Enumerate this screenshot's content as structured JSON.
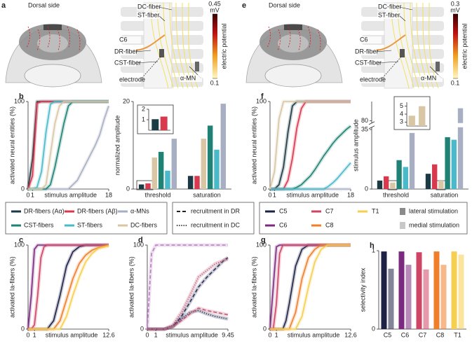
{
  "illustrations": [
    {
      "panel": "a",
      "title": "Dorsal side",
      "labels": [
        "DC-fiber",
        "ST-fiber",
        "C6",
        "DR-fiber",
        "CST-fiber",
        "electrode",
        "α-MN"
      ],
      "colorbar": {
        "max": 0.45,
        "min": 0.1,
        "unit": "mV",
        "label": "electric potential"
      }
    },
    {
      "panel": "e",
      "title": "Dorsal side",
      "labels": [
        "DC-fiber",
        "ST-fiber",
        "C6",
        "DR-fiber",
        "CST-fiber",
        "electrode",
        "α-MN"
      ],
      "colorbar": {
        "max": 0.3,
        "min": 0.1,
        "unit": "mV",
        "label": "electric potential"
      }
    }
  ],
  "legend": {
    "recruitment": [
      "recruitment in DR",
      "recruitment in DC"
    ],
    "stimulation": [
      "lateral stimulation",
      "medial stimulation"
    ]
  },
  "chart_data": [
    {
      "type": "line",
      "panel": "b",
      "ylabel": "activated neural entities (%)",
      "xlabel": "stimulus amplitude",
      "xlim": [
        0,
        18
      ],
      "xticks": [
        0,
        1,
        18
      ],
      "ylim": [
        0,
        100
      ],
      "yticks": [
        0,
        100
      ],
      "x": [
        0,
        1,
        2,
        3,
        4,
        5,
        6,
        7,
        8,
        9,
        10,
        11,
        12,
        13,
        14,
        15,
        16,
        17,
        18
      ],
      "series": [
        {
          "name": "DR-fibers (Aα)",
          "color": "#1b3a44",
          "values": [
            0,
            35,
            100,
            100,
            100,
            100,
            100,
            100,
            100,
            100,
            100,
            100,
            100,
            100,
            100,
            100,
            100,
            100,
            100
          ]
        },
        {
          "name": "DR-fibers (Aβ)",
          "color": "#d8394e",
          "values": [
            0,
            15,
            98,
            100,
            100,
            100,
            100,
            100,
            100,
            100,
            100,
            100,
            100,
            100,
            100,
            100,
            100,
            100,
            100
          ]
        },
        {
          "name": "α-MNs",
          "color": "#a8afc2",
          "values": [
            0,
            0,
            0,
            0,
            0,
            0,
            0,
            0,
            0,
            0,
            5,
            10,
            20,
            30,
            40,
            50,
            62,
            80,
            95
          ]
        },
        {
          "name": "CST-fibers",
          "color": "#1f8275",
          "values": [
            0,
            0,
            0,
            0,
            0,
            5,
            25,
            50,
            75,
            95,
            100,
            100,
            100,
            100,
            100,
            100,
            100,
            100,
            100
          ]
        },
        {
          "name": "ST-fibers",
          "color": "#4ab9c9",
          "values": [
            0,
            0,
            2,
            20,
            65,
            97,
            100,
            100,
            100,
            100,
            100,
            100,
            100,
            100,
            100,
            100,
            100,
            100,
            100
          ]
        },
        {
          "name": "DC-fibers",
          "color": "#d8c6a5",
          "values": [
            0,
            0,
            0,
            0,
            5,
            40,
            75,
            95,
            100,
            100,
            100,
            100,
            100,
            100,
            100,
            100,
            100,
            100,
            100
          ]
        }
      ]
    },
    {
      "type": "bar",
      "ylabel": "normalized amplitude",
      "categories": [
        "threshold",
        "saturation"
      ],
      "ylim": [
        0,
        20
      ],
      "yticks": [
        0,
        20
      ],
      "series": [
        {
          "color": "#1b3a44",
          "values": [
            1.05,
            3
          ]
        },
        {
          "color": "#d8394e",
          "values": [
            1.3,
            3
          ]
        },
        {
          "color": "#d8c6a5",
          "values": [
            7.2,
            11.5
          ]
        },
        {
          "color": "#1f8275",
          "values": [
            8.5,
            14.5
          ]
        },
        {
          "color": "#4ab9c9",
          "values": [
            4.2,
            9
          ]
        },
        {
          "color": "#a8afc2",
          "values": [
            11.5,
            19.5
          ]
        }
      ]
    },
    {
      "type": "bar",
      "categories": [
        null
      ],
      "ylim": [
        0,
        2
      ],
      "yticks": [
        1,
        2
      ],
      "series": [
        {
          "color": "#1b3a44",
          "values": [
            1.05
          ]
        },
        {
          "color": "#d8394e",
          "values": [
            1.3
          ]
        }
      ]
    },
    {
      "type": "line",
      "panel": "f",
      "ylabel": "activated neural entities (%)",
      "xlabel": "stimulus amplitude",
      "xlim": [
        0,
        18
      ],
      "xticks": [
        0,
        1,
        18
      ],
      "ylim": [
        0,
        100
      ],
      "yticks": [
        0,
        100
      ],
      "x": [
        0,
        1,
        2,
        3,
        4,
        5,
        6,
        7,
        8,
        9,
        10,
        11,
        12,
        13,
        14,
        15,
        16,
        17,
        18
      ],
      "series": [
        {
          "color": "#1b3a44",
          "values": [
            0,
            0,
            5,
            25,
            65,
            95,
            100,
            100,
            100,
            100,
            100,
            100,
            100,
            100,
            100,
            100,
            100,
            100,
            100
          ]
        },
        {
          "color": "#d8394e",
          "values": [
            0,
            0,
            0,
            0,
            10,
            35,
            70,
            92,
            100,
            100,
            100,
            100,
            100,
            100,
            100,
            100,
            100,
            100,
            100
          ]
        },
        {
          "color": "#a8afc2",
          "values": [
            0,
            0,
            0,
            0,
            0,
            0,
            0,
            0,
            0,
            0,
            0,
            0,
            0,
            0,
            0,
            0,
            0,
            0,
            0
          ]
        },
        {
          "color": "#1f8275",
          "values": [
            0,
            0,
            0,
            0,
            0,
            0,
            2,
            5,
            10,
            15,
            22,
            30,
            38,
            45,
            52,
            58,
            63,
            68,
            72
          ]
        },
        {
          "color": "#4ab9c9",
          "values": [
            0,
            0,
            0,
            0,
            0,
            0,
            0,
            0,
            0,
            0,
            0,
            0,
            0,
            3,
            7,
            12,
            18,
            24,
            30
          ]
        },
        {
          "color": "#d8c6a5",
          "values": [
            0,
            20,
            80,
            100,
            100,
            100,
            100,
            100,
            100,
            100,
            100,
            100,
            100,
            100,
            100,
            100,
            100,
            100,
            100
          ]
        }
      ]
    },
    {
      "type": "bar",
      "ylabel": "stimulus amplitude",
      "categories": [
        "threshold",
        "saturation"
      ],
      "ylim": [
        0,
        100
      ],
      "ybreak": [
        35,
        80
      ],
      "yticks": [
        0,
        35,
        80
      ],
      "series": [
        {
          "color": "#1b3a44",
          "values": [
            5,
            9
          ]
        },
        {
          "color": "#d8394e",
          "values": [
            7.5,
            14.5
          ]
        },
        {
          "color": "#d8c6a5",
          "values": [
            3.8,
            5
          ]
        },
        {
          "color": "#1f8275",
          "values": [
            17,
            30.5
          ]
        },
        {
          "color": "#4ab9c9",
          "values": [
            13,
            29
          ]
        },
        {
          "color": "#a8afc2",
          "values": [
            33,
            93
          ]
        }
      ]
    },
    {
      "type": "bar",
      "categories": [
        null,
        null
      ],
      "ylim": [
        2.5,
        5.5
      ],
      "yticks": [
        3,
        4,
        5
      ],
      "series": [
        {
          "color": "#d8c6a5",
          "values": [
            3.8,
            5
          ]
        }
      ]
    },
    {
      "type": "line",
      "panel": "c",
      "ylabel": "activated Ia-fibers (%)",
      "xlabel": "stimulus amplitude",
      "xlim": [
        0,
        12.6
      ],
      "xticks": [
        0,
        1,
        12.6
      ],
      "ylim": [
        0,
        100
      ],
      "yticks": [
        0,
        100
      ],
      "x": [
        0,
        0.5,
        1,
        1.5,
        2,
        2.5,
        3,
        4,
        5,
        6,
        7,
        8,
        9,
        10,
        11,
        12.6
      ],
      "series": [
        {
          "name": "C5",
          "color": "#1e2346",
          "values": [
            0,
            0,
            0,
            0,
            0,
            0,
            0,
            10,
            40,
            75,
            92,
            98,
            100,
            100,
            100,
            100
          ]
        },
        {
          "name": "C6",
          "color": "#7c2a80",
          "values": [
            0,
            40,
            95,
            100,
            100,
            100,
            100,
            100,
            100,
            100,
            100,
            100,
            100,
            100,
            100,
            100
          ]
        },
        {
          "name": "C7",
          "color": "#cf4566",
          "values": [
            0,
            0,
            5,
            40,
            85,
            98,
            100,
            100,
            100,
            100,
            100,
            100,
            100,
            100,
            100,
            100
          ]
        },
        {
          "name": "C8",
          "color": "#f07f2b",
          "values": [
            0,
            0,
            0,
            0,
            0,
            0,
            0,
            0,
            10,
            35,
            60,
            78,
            88,
            94,
            97,
            100
          ]
        },
        {
          "name": "T1",
          "color": "#f7cf4f",
          "values": [
            0,
            0,
            0,
            0,
            0,
            0,
            0,
            0,
            0,
            15,
            40,
            62,
            80,
            90,
            96,
            99
          ]
        }
      ]
    },
    {
      "type": "line",
      "panel": "d",
      "ylabel": "activated Ia-fibers (%)",
      "xlabel": "stimulus amplitude",
      "xlim": [
        0,
        9.45
      ],
      "xticks": [
        0,
        1,
        9.45
      ],
      "ylim": [
        0,
        100
      ],
      "yticks": [
        0,
        100
      ],
      "x": [
        0,
        0.5,
        1,
        2,
        3,
        4,
        5,
        6,
        7,
        8,
        9,
        9.45
      ],
      "series": [
        {
          "color": "#b77fbf",
          "dash": "dashed",
          "values": [
            0,
            90,
            100,
            100,
            100,
            100,
            100,
            100,
            100,
            100,
            100,
            100
          ]
        },
        {
          "color": "#2b2d55",
          "dash": "dashed",
          "values": [
            0,
            0,
            0,
            0,
            3,
            15,
            32,
            50,
            62,
            72,
            82,
            85
          ]
        },
        {
          "color": "#c05a78",
          "dash": "dotted",
          "values": [
            0,
            0,
            0,
            0,
            5,
            20,
            40,
            62,
            70,
            78,
            82,
            83
          ]
        },
        {
          "color": "#2b2d55",
          "dash": "dotted",
          "values": [
            0,
            0,
            0,
            0,
            3,
            12,
            20,
            22,
            18,
            15,
            13,
            12
          ]
        },
        {
          "color": "#c05a78",
          "dash": "dashed",
          "values": [
            0,
            0,
            0,
            0,
            3,
            10,
            18,
            25,
            22,
            20,
            18,
            17
          ]
        }
      ]
    },
    {
      "type": "line",
      "panel": "g",
      "ylabel": "activated Ia-fibers (%)",
      "xlabel": "stimulus amplitude",
      "xlim": [
        0,
        12.6
      ],
      "xticks": [
        0,
        1,
        12.6
      ],
      "ylim": [
        0,
        100
      ],
      "yticks": [
        0,
        100
      ],
      "x": [
        0,
        0.5,
        1,
        1.5,
        2,
        2.5,
        3,
        4,
        5,
        6,
        7,
        8,
        9,
        10,
        11,
        12.6
      ],
      "series": [
        {
          "color": "#1e2346",
          "values": [
            0,
            0,
            0,
            0,
            0,
            10,
            30,
            75,
            95,
            100,
            100,
            100,
            100,
            100,
            100,
            100
          ]
        },
        {
          "color": "#7c2a80",
          "values": [
            0,
            50,
            98,
            100,
            100,
            100,
            100,
            100,
            100,
            100,
            100,
            100,
            100,
            100,
            100,
            100
          ]
        },
        {
          "color": "#cf4566",
          "values": [
            0,
            0,
            30,
            90,
            100,
            100,
            100,
            100,
            100,
            100,
            100,
            100,
            100,
            100,
            100,
            100
          ]
        },
        {
          "color": "#f07f2b",
          "values": [
            0,
            0,
            0,
            0,
            0,
            0,
            0,
            20,
            60,
            85,
            95,
            100,
            100,
            100,
            100,
            100
          ]
        },
        {
          "color": "#f7cf4f",
          "values": [
            0,
            0,
            0,
            0,
            0,
            0,
            0,
            0,
            15,
            50,
            80,
            95,
            100,
            100,
            100,
            100
          ]
        }
      ]
    },
    {
      "type": "bar",
      "panel": "h",
      "ylabel": "selectivity index",
      "categories": [
        "C5",
        "C6",
        "C7",
        "C8",
        "T1"
      ],
      "colors": [
        "#1e2346",
        "#7c2a80",
        "#cf4566",
        "#f07f2b",
        "#f7cf4f"
      ],
      "ylim": [
        0,
        1
      ],
      "yticks": [
        0,
        1
      ],
      "series": [
        {
          "opacity": 1,
          "values": [
            0.99,
            0.99,
            0.98,
            0.99,
            0.99
          ]
        },
        {
          "opacity": 0.55,
          "values": [
            0.77,
            0.82,
            0.76,
            0.82,
            0.95
          ]
        }
      ]
    }
  ]
}
